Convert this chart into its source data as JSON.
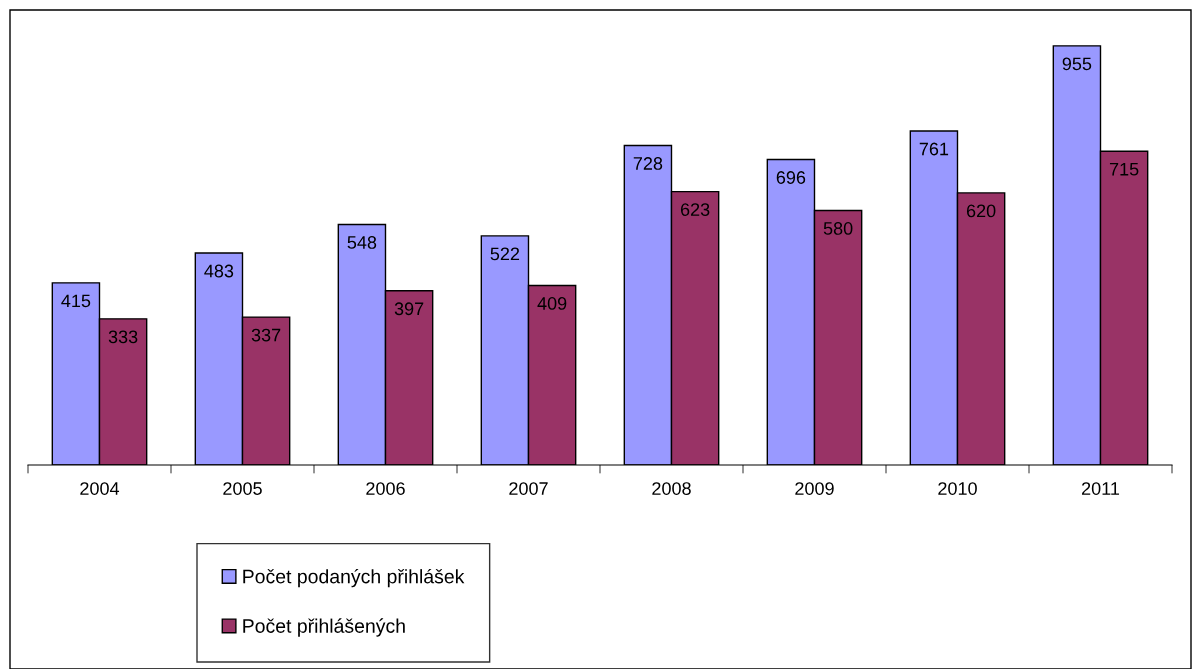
{
  "chart_data": {
    "type": "bar",
    "categories": [
      "2004",
      "2005",
      "2006",
      "2007",
      "2008",
      "2009",
      "2010",
      "2011"
    ],
    "series": [
      {
        "name": "Počet podaných přihlášek",
        "color": "#9999ff",
        "values": [
          415,
          483,
          548,
          522,
          728,
          696,
          761,
          955
        ]
      },
      {
        "name": "Počet přihlášených",
        "color": "#993366",
        "values": [
          333,
          337,
          397,
          409,
          623,
          580,
          620,
          715
        ]
      }
    ],
    "data_labels": true,
    "legend": "bottom",
    "grid": false
  }
}
